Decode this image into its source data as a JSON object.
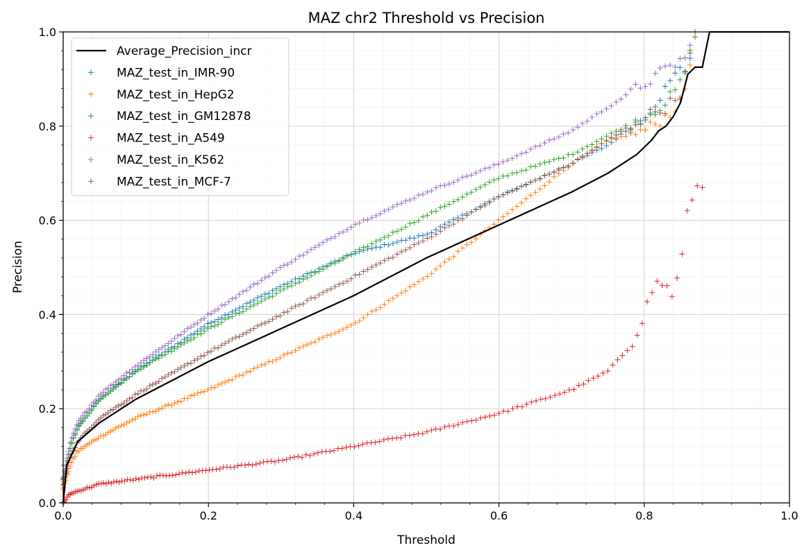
{
  "chart_data": {
    "type": "scatter",
    "title": "MAZ chr2 Threshold vs Precision",
    "xlabel": "Threshold",
    "ylabel": "Precision",
    "xlim": [
      0.0,
      1.0
    ],
    "ylim": [
      0.0,
      1.0
    ],
    "xticks": [
      "0.0",
      "0.2",
      "0.4",
      "0.6",
      "0.8",
      "1.0"
    ],
    "yticks": [
      "0.0",
      "0.2",
      "0.4",
      "0.6",
      "0.8",
      "1.0"
    ],
    "grid": true,
    "legend_position": "upper-left",
    "line": {
      "name": "Average_Precision_incr",
      "color": "#000000",
      "points": [
        [
          0.0,
          0.0
        ],
        [
          0.005,
          0.08
        ],
        [
          0.02,
          0.13
        ],
        [
          0.05,
          0.17
        ],
        [
          0.1,
          0.22
        ],
        [
          0.2,
          0.3
        ],
        [
          0.3,
          0.37
        ],
        [
          0.4,
          0.44
        ],
        [
          0.5,
          0.52
        ],
        [
          0.6,
          0.59
        ],
        [
          0.7,
          0.66
        ],
        [
          0.75,
          0.7
        ],
        [
          0.79,
          0.74
        ],
        [
          0.81,
          0.77
        ],
        [
          0.82,
          0.79
        ],
        [
          0.83,
          0.8
        ],
        [
          0.84,
          0.82
        ],
        [
          0.85,
          0.85
        ],
        [
          0.86,
          0.91
        ],
        [
          0.87,
          0.925
        ],
        [
          0.88,
          0.925
        ],
        [
          0.89,
          1.0
        ],
        [
          1.0,
          1.0
        ]
      ]
    },
    "series": [
      {
        "name": "MAZ_test_in_IMR-90",
        "color": "#1f77b4",
        "points": [
          [
            0.0,
            0.05
          ],
          [
            0.01,
            0.12
          ],
          [
            0.02,
            0.16
          ],
          [
            0.05,
            0.22
          ],
          [
            0.1,
            0.28
          ],
          [
            0.2,
            0.38
          ],
          [
            0.3,
            0.46
          ],
          [
            0.4,
            0.53
          ],
          [
            0.5,
            0.57
          ],
          [
            0.6,
            0.65
          ],
          [
            0.7,
            0.72
          ],
          [
            0.75,
            0.76
          ],
          [
            0.8,
            0.82
          ],
          [
            0.82,
            0.86
          ],
          [
            0.84,
            0.9
          ],
          [
            0.85,
            0.93
          ],
          [
            0.86,
            0.92
          ],
          [
            0.87,
            1.0
          ]
        ]
      },
      {
        "name": "MAZ_test_in_HepG2",
        "color": "#ff7f0e",
        "points": [
          [
            0.0,
            0.03
          ],
          [
            0.01,
            0.08
          ],
          [
            0.02,
            0.11
          ],
          [
            0.05,
            0.14
          ],
          [
            0.1,
            0.18
          ],
          [
            0.2,
            0.24
          ],
          [
            0.3,
            0.31
          ],
          [
            0.4,
            0.38
          ],
          [
            0.5,
            0.48
          ],
          [
            0.6,
            0.6
          ],
          [
            0.7,
            0.72
          ],
          [
            0.75,
            0.77
          ],
          [
            0.8,
            0.79
          ],
          [
            0.83,
            0.82
          ],
          [
            0.85,
            0.85
          ],
          [
            0.86,
            0.9
          ],
          [
            0.87,
            1.0
          ]
        ]
      },
      {
        "name": "MAZ_test_in_GM12878",
        "color": "#2ca02c",
        "points": [
          [
            0.0,
            0.05
          ],
          [
            0.01,
            0.12
          ],
          [
            0.02,
            0.16
          ],
          [
            0.05,
            0.22
          ],
          [
            0.1,
            0.28
          ],
          [
            0.2,
            0.37
          ],
          [
            0.3,
            0.45
          ],
          [
            0.4,
            0.53
          ],
          [
            0.5,
            0.61
          ],
          [
            0.6,
            0.69
          ],
          [
            0.7,
            0.74
          ],
          [
            0.75,
            0.78
          ],
          [
            0.8,
            0.82
          ],
          [
            0.83,
            0.85
          ],
          [
            0.85,
            0.89
          ],
          [
            0.86,
            0.93
          ],
          [
            0.87,
            1.0
          ]
        ]
      },
      {
        "name": "MAZ_test_in_A549",
        "color": "#d62728",
        "points": [
          [
            0.0,
            0.0
          ],
          [
            0.01,
            0.02
          ],
          [
            0.05,
            0.04
          ],
          [
            0.1,
            0.05
          ],
          [
            0.2,
            0.07
          ],
          [
            0.3,
            0.09
          ],
          [
            0.4,
            0.12
          ],
          [
            0.5,
            0.15
          ],
          [
            0.6,
            0.19
          ],
          [
            0.7,
            0.24
          ],
          [
            0.75,
            0.28
          ],
          [
            0.78,
            0.33
          ],
          [
            0.8,
            0.4
          ],
          [
            0.81,
            0.45
          ],
          [
            0.82,
            0.47
          ],
          [
            0.83,
            0.46
          ],
          [
            0.84,
            0.44
          ],
          [
            0.85,
            0.5
          ],
          [
            0.86,
            0.62
          ],
          [
            0.87,
            0.67
          ],
          [
            0.88,
            0.67
          ]
        ]
      },
      {
        "name": "MAZ_test_in_K562",
        "color": "#9467bd",
        "points": [
          [
            0.0,
            0.05
          ],
          [
            0.01,
            0.13
          ],
          [
            0.02,
            0.17
          ],
          [
            0.05,
            0.23
          ],
          [
            0.1,
            0.29
          ],
          [
            0.2,
            0.4
          ],
          [
            0.3,
            0.5
          ],
          [
            0.4,
            0.59
          ],
          [
            0.5,
            0.66
          ],
          [
            0.6,
            0.72
          ],
          [
            0.7,
            0.79
          ],
          [
            0.75,
            0.84
          ],
          [
            0.8,
            0.89
          ],
          [
            0.82,
            0.91
          ],
          [
            0.84,
            0.93
          ],
          [
            0.86,
            0.95
          ],
          [
            0.87,
            1.0
          ]
        ]
      },
      {
        "name": "MAZ_test_in_MCF-7",
        "color": "#8c564b",
        "points": [
          [
            0.0,
            0.04
          ],
          [
            0.01,
            0.1
          ],
          [
            0.02,
            0.13
          ],
          [
            0.05,
            0.18
          ],
          [
            0.1,
            0.23
          ],
          [
            0.2,
            0.32
          ],
          [
            0.3,
            0.4
          ],
          [
            0.4,
            0.48
          ],
          [
            0.5,
            0.56
          ],
          [
            0.6,
            0.65
          ],
          [
            0.7,
            0.72
          ],
          [
            0.75,
            0.77
          ],
          [
            0.8,
            0.82
          ],
          [
            0.83,
            0.84
          ],
          [
            0.85,
            0.87
          ],
          [
            0.86,
            0.93
          ],
          [
            0.87,
            1.0
          ]
        ]
      }
    ]
  }
}
